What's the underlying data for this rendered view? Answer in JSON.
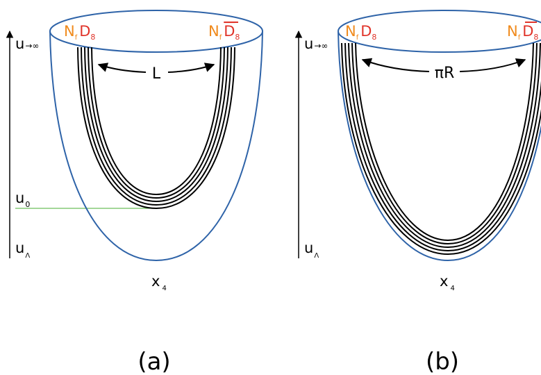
{
  "panels": [
    {
      "caption": "(a)",
      "axis_top": "u",
      "axis_top_sub": "→∞",
      "axis_bottom": "u",
      "axis_bottom_sub": "Λ",
      "mid_label": "u",
      "mid_sub": "0",
      "brane_left": {
        "N": "N",
        "f": "f",
        "D": "D",
        "n": "8"
      },
      "brane_right": {
        "N": "N",
        "f": "f",
        "D": "D",
        "n": "8"
      },
      "separation": "L",
      "x_label": "x",
      "x_sub": "4"
    },
    {
      "caption": "(b)",
      "axis_top": "u",
      "axis_top_sub": "→∞",
      "axis_bottom": "u",
      "axis_bottom_sub": "Λ",
      "brane_left": {
        "N": "N",
        "f": "f",
        "D": "D",
        "n": "8"
      },
      "brane_right": {
        "N": "N",
        "f": "f",
        "D": "D",
        "n": "8"
      },
      "separation": "πR",
      "x_label": "x",
      "x_sub": "4"
    }
  ],
  "colors": {
    "outline": "#2e63a8",
    "orange": "#f08a1c",
    "red": "#e0342a",
    "green": "#6cbf5a",
    "black": "#000000"
  }
}
